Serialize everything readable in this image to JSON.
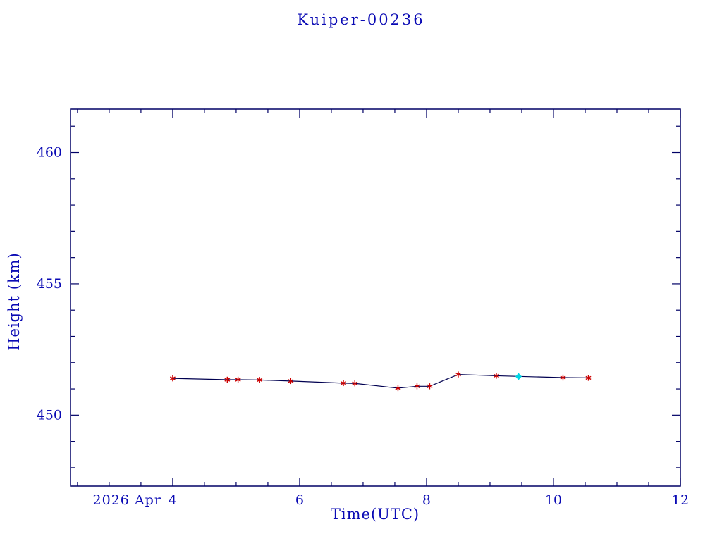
{
  "chart_data": {
    "type": "line",
    "title": "Kuiper-00236",
    "xlabel": "Time(UTC)",
    "ylabel": "Height (km)",
    "x_axis_date_prefix": "2026 Apr",
    "xlim": [
      2.39,
      12
    ],
    "ylim": [
      447.3,
      461.65
    ],
    "xticks": [
      4,
      6,
      8,
      10,
      12
    ],
    "yticks": [
      450,
      455,
      460
    ],
    "x_minor_tick_step": 0.5,
    "y_minor_tick_step": 1,
    "grid": false,
    "legend": "none",
    "colors": {
      "frame": "#000066",
      "text": "#0a0ab4",
      "line": "#000050",
      "marker": "#cc0000",
      "highlight": "#00d5e5"
    },
    "series": [
      {
        "name": "height-track",
        "marker": "asterisk",
        "points": [
          [
            4.0,
            451.4
          ],
          [
            4.86,
            451.35
          ],
          [
            5.03,
            451.35
          ],
          [
            5.37,
            451.34
          ],
          [
            5.86,
            451.3
          ],
          [
            6.69,
            451.22
          ],
          [
            6.87,
            451.21
          ],
          [
            7.55,
            451.03
          ],
          [
            7.85,
            451.1
          ],
          [
            8.05,
            451.1
          ],
          [
            8.5,
            451.55
          ],
          [
            9.1,
            451.5
          ],
          [
            10.15,
            451.43
          ],
          [
            10.55,
            451.42
          ]
        ]
      },
      {
        "name": "latest-point",
        "marker": "diamond",
        "points": [
          [
            9.45,
            451.47
          ]
        ]
      }
    ]
  }
}
